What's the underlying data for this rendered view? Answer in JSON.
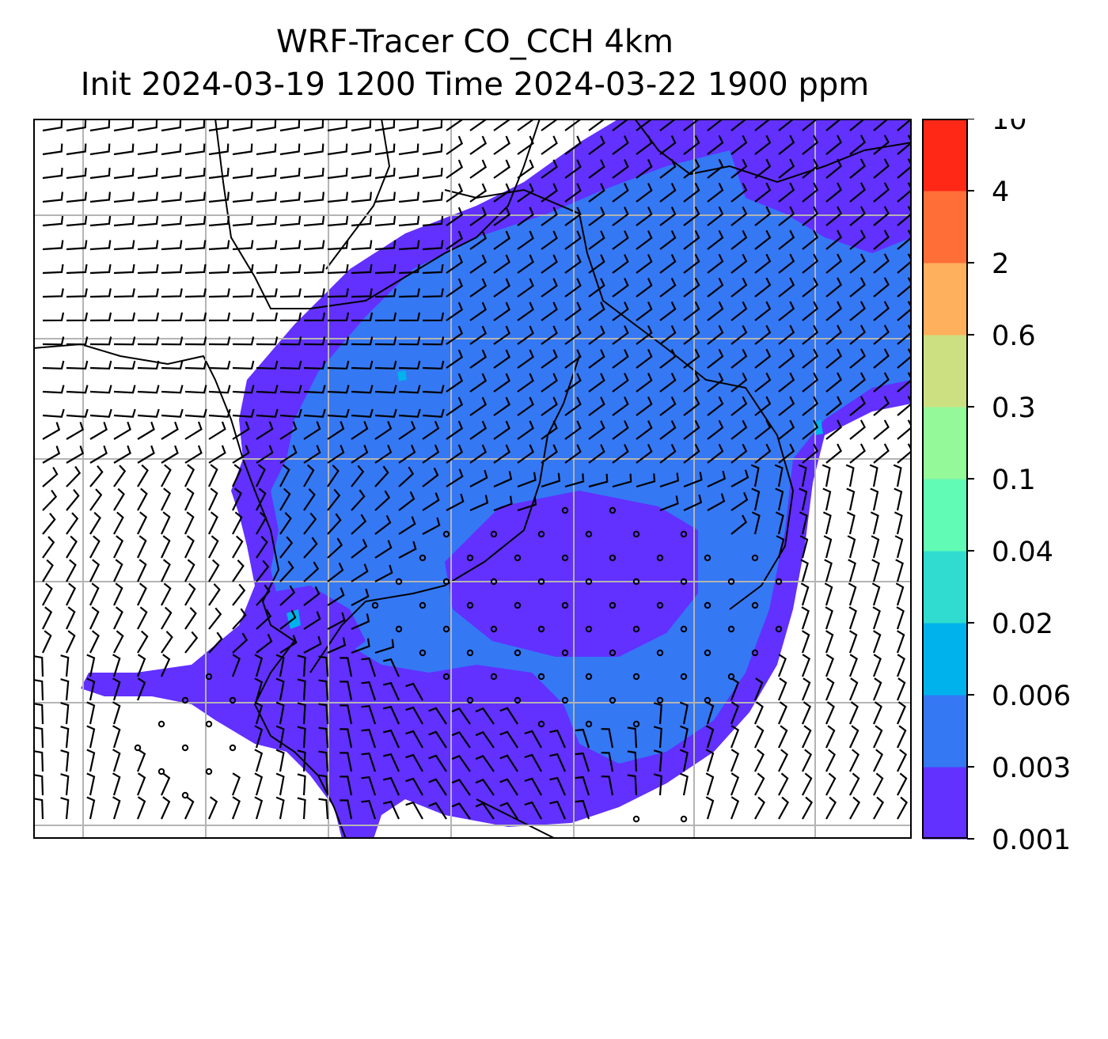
{
  "title": {
    "line1": "WRF-Tracer CO_CCH 4km",
    "line2": "Init 2024-03-19 1200 Time 2024-03-22 1900 ppm"
  },
  "colorbar": {
    "levels": [
      {
        "tick": "0.001",
        "color": "#6230ff"
      },
      {
        "tick": "0.003",
        "color": "#3478f4"
      },
      {
        "tick": "0.006",
        "color": "#00b2eb"
      },
      {
        "tick": "0.02",
        "color": "#2fdccf"
      },
      {
        "tick": "0.04",
        "color": "#62fbb5"
      },
      {
        "tick": "0.1",
        "color": "#93f999"
      },
      {
        "tick": "0.3",
        "color": "#cce082"
      },
      {
        "tick": "0.6",
        "color": "#ffb05c"
      },
      {
        "tick": "2",
        "color": "#ff6e37"
      },
      {
        "tick": "4",
        "color": "#ff2817"
      },
      {
        "tick": "10",
        "color": null
      }
    ]
  },
  "colors": {
    "plume_low": "#6230ff",
    "plume_mid": "#3478f4",
    "plume_cyan": "#00b2eb",
    "grid": "#b4b4b4",
    "barb": "#000000"
  }
}
